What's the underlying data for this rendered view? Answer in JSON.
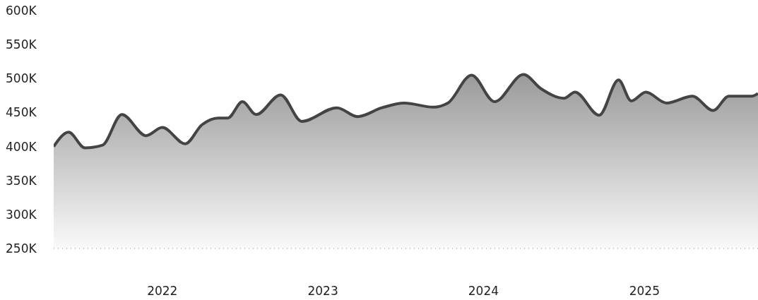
{
  "chart_data": {
    "type": "area",
    "x": [
      "2021-04-29",
      "2021-06-02",
      "2021-07-09",
      "2021-08-18",
      "2021-10-01",
      "2021-11-25",
      "2022-01-01",
      "2022-02-22",
      "2022-04-01",
      "2022-05-08",
      "2022-05-30",
      "2022-07-02",
      "2022-08-02",
      "2022-09-27",
      "2022-11-14",
      "2023-02-02",
      "2023-03-21",
      "2023-05-15",
      "2023-07-05",
      "2023-09-09",
      "2023-10-12",
      "2023-12-05",
      "2024-01-26",
      "2024-04-01",
      "2024-05-11",
      "2024-07-02",
      "2024-07-27",
      "2024-09-20",
      "2024-11-03",
      "2024-12-02",
      "2025-01-04",
      "2025-02-20",
      "2025-04-20",
      "2025-06-06",
      "2025-07-12",
      "2025-09-02",
      "2025-09-16"
    ],
    "series": [
      {
        "color": "#444444",
        "values": [
          400000,
          421000,
          398000,
          402000,
          447000,
          416000,
          428000,
          404000,
          432000,
          442000,
          442000,
          466000,
          447000,
          476000,
          437000,
          457000,
          444000,
          457000,
          464000,
          458000,
          464000,
          505000,
          466000,
          506000,
          485000,
          471000,
          480000,
          446000,
          498000,
          467000,
          480000,
          464000,
          474000,
          453000,
          474000,
          474000,
          478000
        ]
      }
    ],
    "xlim": [
      "2021-04-29",
      "2025-09-16"
    ],
    "xticks": [
      "2022",
      "2023",
      "2024",
      "2025"
    ],
    "ylim": [
      250000,
      600000
    ],
    "yticks": [
      {
        "value": 250000,
        "label": "250K"
      },
      {
        "value": 300000,
        "label": "300K"
      },
      {
        "value": 350000,
        "label": "350K"
      },
      {
        "value": 400000,
        "label": "400K"
      },
      {
        "value": 450000,
        "label": "450K"
      },
      {
        "value": 500000,
        "label": "500K"
      },
      {
        "value": 550000,
        "label": "550K"
      },
      {
        "value": 600000,
        "label": "600K"
      }
    ],
    "grid": false,
    "legend": false
  }
}
